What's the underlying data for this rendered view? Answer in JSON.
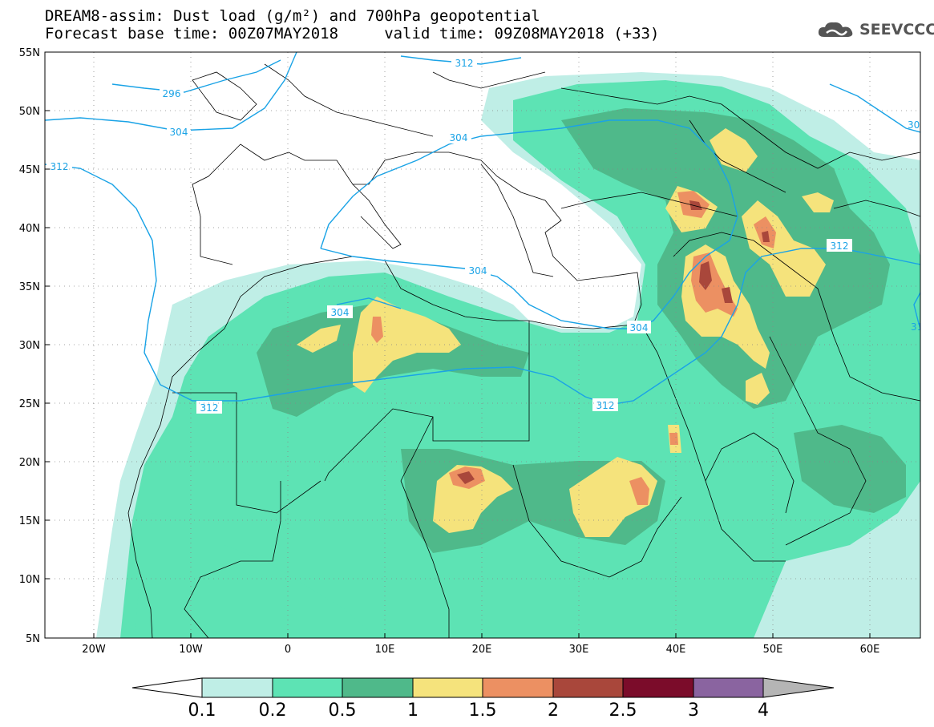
{
  "header": {
    "title_line1": "DREAM8-assim: Dust load (g/m²) and 700hPa geopotential",
    "title_line2": "Forecast base time: 00Z07MAY2018     valid time: 09Z08MAY2018 (+33)",
    "logo_text": "SEEVCCC",
    "logo_icon": "cloud-icon"
  },
  "map": {
    "lat_labels": [
      "55N",
      "50N",
      "45N",
      "40N",
      "35N",
      "30N",
      "25N",
      "20N",
      "15N",
      "10N",
      "5N"
    ],
    "lon_labels": [
      "20W",
      "10W",
      "0",
      "10E",
      "20E",
      "30E",
      "40E",
      "50E",
      "60E"
    ],
    "contour_labels": [
      "296",
      "304",
      "312",
      "312",
      "304",
      "304",
      "312",
      "312",
      "304",
      "312",
      "30",
      "31"
    ],
    "contour_color": "#1aa3e6"
  },
  "colorbar": {
    "colors": [
      "#ffffff",
      "#bfeee6",
      "#5de3b4",
      "#4fb98a",
      "#f5e37c",
      "#ec9062",
      "#a9473b",
      "#7b0c2a",
      "#8a64a0",
      "#b5b5b5"
    ],
    "labels": [
      "0.1",
      "0.2",
      "0.5",
      "1",
      "1.5",
      "2",
      "2.5",
      "3",
      "4"
    ]
  }
}
